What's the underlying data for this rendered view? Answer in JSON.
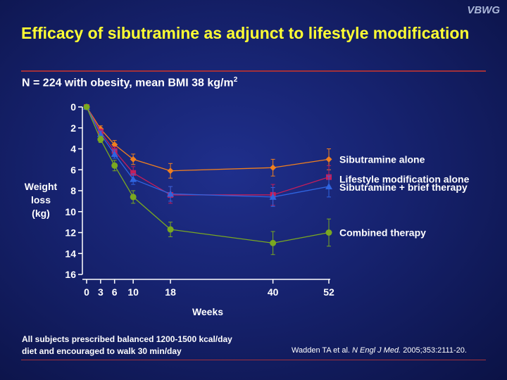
{
  "brand": "VBWG",
  "title": "Efficacy of sibutramine as adjunct to lifestyle modification",
  "subtitle": {
    "text": "N = 224 with obesity, mean BMI 38 kg/m",
    "superscript": "2"
  },
  "footnote": {
    "line1": "All subjects prescribed balanced 1200-1500 kcal/day",
    "line2": "diet and encouraged to walk 30 min/day"
  },
  "citation": {
    "authors": "Wadden TA et al.",
    "journal": "N Engl J Med.",
    "details": "2005;353:2111-20."
  },
  "chart_data": {
    "type": "line",
    "xlabel": "Weeks",
    "ylabel_lines": [
      "Weight",
      "loss",
      "(kg)"
    ],
    "x_ticks": [
      0,
      3,
      6,
      10,
      18,
      40,
      52
    ],
    "y_ticks": [
      0,
      2,
      4,
      6,
      8,
      10,
      12,
      14,
      16
    ],
    "xlim": [
      0,
      52
    ],
    "ylim": [
      0,
      16
    ],
    "y_inverted": true,
    "series": [
      {
        "name": "Sibutramine alone",
        "color": "#f07f1e",
        "marker": "diamond",
        "x": [
          0,
          3,
          6,
          10,
          18,
          40,
          52
        ],
        "y": [
          0,
          2.1,
          3.6,
          5.0,
          6.1,
          5.8,
          5.0
        ],
        "err": [
          0,
          0.3,
          0.4,
          0.5,
          0.7,
          0.8,
          1.0
        ]
      },
      {
        "name": "Lifestyle modification alone",
        "color": "#c41e5a",
        "marker": "square",
        "x": [
          0,
          3,
          6,
          10,
          18,
          40,
          52
        ],
        "y": [
          0,
          2.4,
          4.2,
          6.3,
          8.4,
          8.4,
          6.7
        ],
        "err": [
          0,
          0.3,
          0.4,
          0.6,
          0.8,
          1.0,
          1.1
        ]
      },
      {
        "name": "Sibutramine + brief therapy",
        "color": "#2f64e0",
        "marker": "triangle",
        "x": [
          0,
          3,
          6,
          10,
          18,
          40,
          52
        ],
        "y": [
          0,
          2.6,
          4.5,
          6.9,
          8.3,
          8.6,
          7.6
        ],
        "err": [
          0,
          0.3,
          0.4,
          0.5,
          0.7,
          0.9,
          1.0
        ]
      },
      {
        "name": "Combined therapy",
        "color": "#7aa820",
        "marker": "circle",
        "x": [
          0,
          3,
          6,
          10,
          18,
          40,
          52
        ],
        "y": [
          0,
          3.1,
          5.6,
          8.6,
          11.7,
          13.0,
          12.0
        ],
        "err": [
          0,
          0.3,
          0.5,
          0.6,
          0.7,
          1.1,
          1.3
        ]
      }
    ]
  }
}
